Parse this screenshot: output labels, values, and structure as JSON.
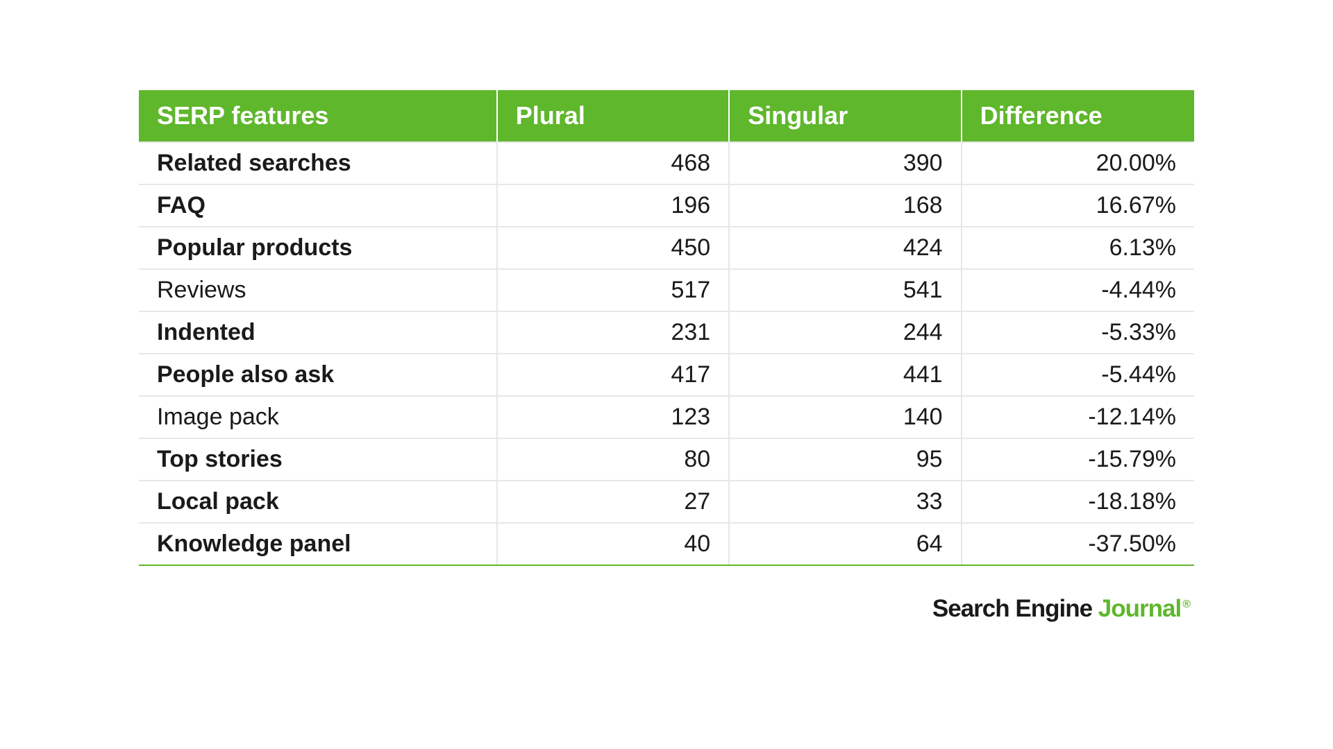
{
  "table": {
    "type": "table",
    "header_bg": "#5fb72c",
    "header_text_color": "#ffffff",
    "header_fontsize": 36,
    "header_fontweight": 800,
    "body_fontsize": 34,
    "body_text_color": "#1a1a1a",
    "cell_border_color": "#e7e7e7",
    "background_color": "#ffffff",
    "bottom_rule_color": "#5fb72c",
    "column_widths_pct": [
      34,
      22,
      22,
      22
    ],
    "columns": [
      {
        "label": "SERP features",
        "align": "left"
      },
      {
        "label": "Plural",
        "align": "right"
      },
      {
        "label": "Singular",
        "align": "right"
      },
      {
        "label": "Difference",
        "align": "right"
      }
    ],
    "rows": [
      {
        "feature": "Related searches",
        "bold": true,
        "plural": "468",
        "singular": "390",
        "difference": "20.00%"
      },
      {
        "feature": "FAQ",
        "bold": true,
        "plural": "196",
        "singular": "168",
        "difference": "16.67%"
      },
      {
        "feature": "Popular products",
        "bold": true,
        "plural": "450",
        "singular": "424",
        "difference": "6.13%"
      },
      {
        "feature": "Reviews",
        "bold": false,
        "plural": "517",
        "singular": "541",
        "difference": "-4.44%"
      },
      {
        "feature": "Indented",
        "bold": true,
        "plural": "231",
        "singular": "244",
        "difference": "-5.33%"
      },
      {
        "feature": "People also ask",
        "bold": true,
        "plural": "417",
        "singular": "441",
        "difference": "-5.44%"
      },
      {
        "feature": "Image pack",
        "bold": false,
        "plural": "123",
        "singular": "140",
        "difference": "-12.14%"
      },
      {
        "feature": "Top stories",
        "bold": true,
        "plural": "80",
        "singular": "95",
        "difference": "-15.79%"
      },
      {
        "feature": "Local pack",
        "bold": true,
        "plural": "27",
        "singular": "33",
        "difference": "-18.18%"
      },
      {
        "feature": "Knowledge panel",
        "bold": true,
        "plural": "40",
        "singular": "64",
        "difference": "-37.50%"
      }
    ]
  },
  "brand": {
    "part1": "Search Engine",
    "part2": "Journal",
    "reg": "®",
    "part1_color": "#1a1a1a",
    "part2_color": "#5fb72c",
    "fontsize": 35,
    "fontweight": 800
  }
}
